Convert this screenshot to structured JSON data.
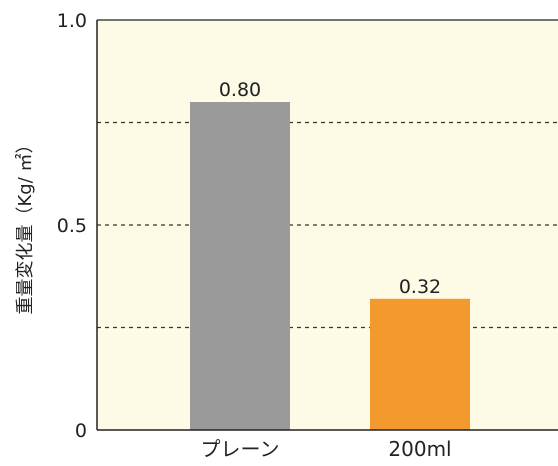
{
  "chart_data": {
    "type": "bar",
    "categories": [
      "プレーン",
      "200ml"
    ],
    "values": [
      0.8,
      0.32
    ],
    "value_labels": [
      "0.80",
      "0.32"
    ],
    "bar_colors": [
      "#9a9a9a",
      "#f39a2e"
    ],
    "title": "",
    "xlabel": "",
    "ylabel": "重量変化量（Kg/ ㎡）",
    "ylim": [
      0,
      1.0
    ],
    "yticks": [
      0,
      0.5,
      1.0
    ],
    "ytick_labels": [
      "0",
      "0.5",
      "1.0"
    ],
    "grid": {
      "style": "dashed",
      "values": [
        0.25,
        0.5,
        0.75
      ]
    },
    "plot_background": "#fdfbe6",
    "legend": "none"
  }
}
